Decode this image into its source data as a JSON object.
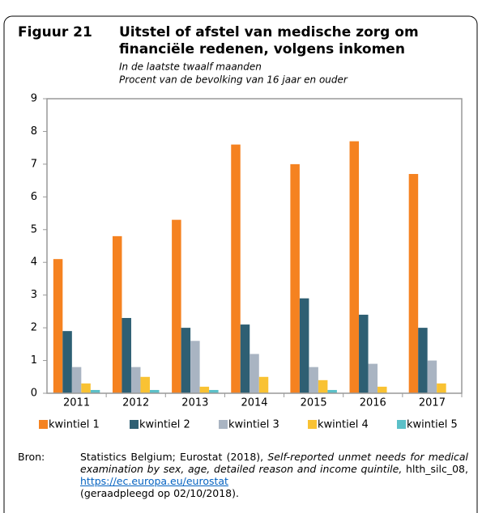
{
  "chart_data": {
    "type": "bar",
    "figure_label": "Figuur 21",
    "title": [
      "Uitstel of afstel van medische zorg om",
      "financiële redenen, volgens inkomen"
    ],
    "subtitle": [
      "In de laatste twaalf maanden",
      "Procent van de bevolking van 16 jaar en ouder"
    ],
    "categories": [
      "2011",
      "2012",
      "2013",
      "2014",
      "2015",
      "2016",
      "2017"
    ],
    "series": [
      {
        "name": "kwintiel 1",
        "color": "#f58220",
        "values": [
          4.1,
          4.8,
          5.3,
          7.6,
          7.0,
          7.7,
          6.7
        ]
      },
      {
        "name": "kwintiel 2",
        "color": "#2e5f73",
        "values": [
          1.9,
          2.3,
          2.0,
          2.1,
          2.9,
          2.4,
          2.0
        ]
      },
      {
        "name": "kwintiel 3",
        "color": "#a9b4c2",
        "values": [
          0.8,
          0.8,
          1.6,
          1.2,
          0.8,
          0.9,
          1.0
        ]
      },
      {
        "name": "kwintiel 4",
        "color": "#f9c233",
        "values": [
          0.3,
          0.5,
          0.2,
          0.5,
          0.4,
          0.2,
          0.3
        ]
      },
      {
        "name": "kwintiel 5",
        "color": "#5bc0c8",
        "values": [
          0.1,
          0.1,
          0.1,
          0,
          0.1,
          0,
          0
        ]
      }
    ],
    "ylim": [
      0,
      9
    ],
    "yticks": [
      0,
      1,
      2,
      3,
      4,
      5,
      6,
      7,
      8,
      9
    ],
    "grid": false,
    "legend": "bottom"
  },
  "source": {
    "label": "Bron:",
    "text1": "Statistics Belgium; Eurostat (2018), ",
    "italic": "Self-reported unmet needs for medical examination by sex, age, detailed reason and income quintile,",
    "text2": " hlth_silc_08, ",
    "link": "https://ec.europa.eu/eurostat",
    "text3": "(geraadpleegd op 02/10/2018)."
  }
}
